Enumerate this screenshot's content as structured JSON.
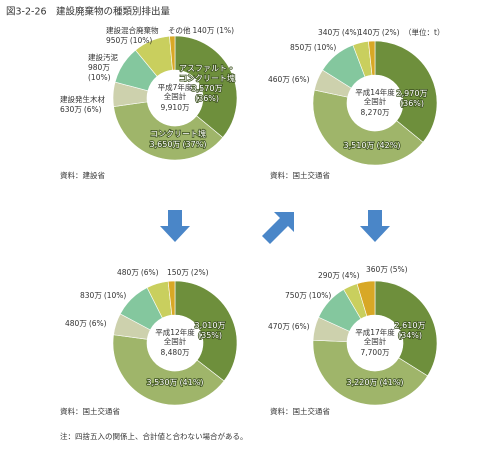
{
  "header": {
    "title": "図3-2-26　建設廃棄物の種類別排出量",
    "unit": "（単位：t）"
  },
  "footnote": "注：四捨五入の関係上、合計値と合わない場合がある。",
  "chart_data": [
    {
      "type": "pie",
      "center_label": [
        "平成7年度",
        "全国計"
      ],
      "total": 9910,
      "total_label": "9,910万",
      "source": "資料：建設省",
      "categories": [
        "アスファルト・コンクリート塊",
        "コンクリート塊",
        "建設発生木材",
        "建設汚泥",
        "建設混合廃棄物",
        "その他"
      ],
      "values": [
        3570,
        3650,
        630,
        980,
        950,
        140
      ],
      "value_labels": [
        "3,570万",
        "3,650万",
        "630万",
        "980万",
        "950万",
        "140万"
      ],
      "percents": [
        36,
        37,
        6,
        10,
        10,
        1
      ],
      "percent_labels": [
        "(36%)",
        "(37%)",
        "(6%)",
        "(10%)",
        "(10%)",
        "(1%)"
      ],
      "colors": [
        "#6e8f3c",
        "#9fb56a",
        "#cdd1ad",
        "#84c79e",
        "#c9cf5e",
        "#d8a826"
      ]
    },
    {
      "type": "pie",
      "center_label": [
        "平成14年度",
        "全国計"
      ],
      "total": 8270,
      "total_label": "8,270万",
      "source": "資料：国土交通省",
      "values": [
        2970,
        3510,
        460,
        850,
        340,
        140
      ],
      "value_labels": [
        "2,970万",
        "3,510万",
        "460万",
        "850万",
        "340万",
        "140万"
      ],
      "percents": [
        36,
        42,
        6,
        10,
        4,
        2
      ],
      "percent_labels": [
        "(36%)",
        "(42%)",
        "(6%)",
        "(10%)",
        "(4%)",
        "(2%)"
      ],
      "colors": [
        "#6e8f3c",
        "#9fb56a",
        "#cdd1ad",
        "#84c79e",
        "#c9cf5e",
        "#d8a826"
      ]
    },
    {
      "type": "pie",
      "center_label": [
        "平成12年度",
        "全国計"
      ],
      "total": 8480,
      "total_label": "8,480万",
      "source": "資料：国土交通省",
      "values": [
        3010,
        3530,
        480,
        830,
        480,
        150
      ],
      "value_labels": [
        "3,010万",
        "3,530万",
        "480万",
        "830万",
        "480万",
        "150万"
      ],
      "percents": [
        35,
        41,
        6,
        10,
        6,
        2
      ],
      "percent_labels": [
        "(35%)",
        "(41%)",
        "(6%)",
        "(10%)",
        "(6%)",
        "(2%)"
      ],
      "colors": [
        "#6e8f3c",
        "#9fb56a",
        "#cdd1ad",
        "#84c79e",
        "#c9cf5e",
        "#d8a826"
      ]
    },
    {
      "type": "pie",
      "center_label": [
        "平成17年度",
        "全国計"
      ],
      "total": 7700,
      "total_label": "7,700万",
      "source": "資料：国土交通省",
      "values": [
        2610,
        3220,
        470,
        750,
        290,
        360
      ],
      "value_labels": [
        "2,610万",
        "3,220万",
        "470万",
        "750万",
        "290万",
        "360万"
      ],
      "percents": [
        34,
        41,
        6,
        10,
        4,
        5
      ],
      "percent_labels": [
        "(34%)",
        "(41%)",
        "(6%)",
        "(10%)",
        "(4%)",
        "(5%)"
      ],
      "colors": [
        "#6e8f3c",
        "#9fb56a",
        "#cdd1ad",
        "#84c79e",
        "#c9cf5e",
        "#d8a826"
      ]
    }
  ]
}
